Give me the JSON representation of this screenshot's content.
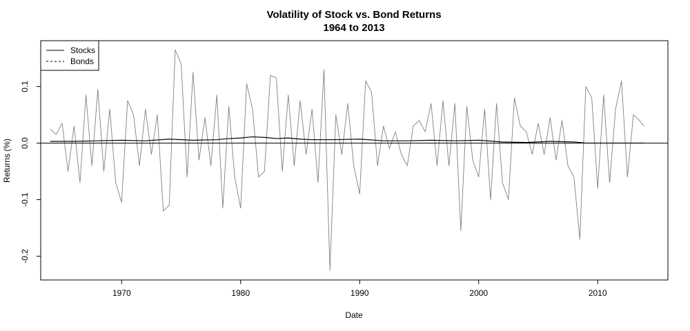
{
  "chart_data": {
    "type": "line",
    "title": "Volatility of Stock vs. Bond Returns",
    "subtitle": "1964 to 2013",
    "xlabel": "Date",
    "ylabel": "Returns (%)",
    "xlim": [
      1963.2,
      2015.9
    ],
    "ylim": [
      -0.242,
      0.181
    ],
    "x_ticks": [
      1970,
      1980,
      1990,
      2000,
      2010
    ],
    "y_ticks": [
      -0.2,
      -0.1,
      0.0,
      0.1
    ],
    "y_tick_labels": [
      "-0.2",
      "-0.1",
      "0.0",
      "0.1"
    ],
    "reference_line_y": 0,
    "grid": false,
    "legend_position": "top-left",
    "series": [
      {
        "name": "Stocks",
        "color": "#808080",
        "line_style": "solid",
        "x": [
          1964.0,
          1964.5,
          1965.0,
          1965.5,
          1966.0,
          1966.5,
          1967.0,
          1967.5,
          1968.0,
          1968.5,
          1969.0,
          1969.5,
          1970.0,
          1970.5,
          1971.0,
          1971.5,
          1972.0,
          1972.5,
          1973.0,
          1973.5,
          1974.0,
          1974.5,
          1975.0,
          1975.5,
          1976.0,
          1976.5,
          1977.0,
          1977.5,
          1978.0,
          1978.5,
          1979.0,
          1979.5,
          1980.0,
          1980.5,
          1981.0,
          1981.5,
          1982.0,
          1982.5,
          1983.0,
          1983.5,
          1984.0,
          1984.5,
          1985.0,
          1985.5,
          1986.0,
          1986.5,
          1987.0,
          1987.5,
          1988.0,
          1988.5,
          1989.0,
          1989.5,
          1990.0,
          1990.5,
          1991.0,
          1991.5,
          1992.0,
          1992.5,
          1993.0,
          1993.5,
          1994.0,
          1994.5,
          1995.0,
          1995.5,
          1996.0,
          1996.5,
          1997.0,
          1997.5,
          1998.0,
          1998.5,
          1999.0,
          1999.5,
          2000.0,
          2000.5,
          2001.0,
          2001.5,
          2002.0,
          2002.5,
          2003.0,
          2003.5,
          2004.0,
          2004.5,
          2005.0,
          2005.5,
          2006.0,
          2006.5,
          2007.0,
          2007.5,
          2008.0,
          2008.5,
          2009.0,
          2009.5,
          2010.0,
          2010.5,
          2011.0,
          2011.5,
          2012.0,
          2012.5,
          2013.0,
          2013.5,
          2013.9
        ],
        "values": [
          0.025,
          0.015,
          0.035,
          -0.05,
          0.03,
          -0.07,
          0.085,
          -0.04,
          0.095,
          -0.05,
          0.06,
          -0.07,
          -0.105,
          0.075,
          0.05,
          -0.04,
          0.06,
          -0.02,
          0.05,
          -0.12,
          -0.11,
          0.165,
          0.14,
          -0.06,
          0.125,
          -0.03,
          0.045,
          -0.04,
          0.085,
          -0.115,
          0.065,
          -0.06,
          -0.115,
          0.105,
          0.06,
          -0.06,
          -0.05,
          0.12,
          0.115,
          -0.05,
          0.085,
          -0.04,
          0.075,
          -0.02,
          0.06,
          -0.07,
          0.13,
          -0.225,
          0.05,
          -0.02,
          0.07,
          -0.04,
          -0.09,
          0.11,
          0.09,
          -0.04,
          0.03,
          -0.01,
          0.02,
          -0.02,
          -0.04,
          0.03,
          0.04,
          0.02,
          0.07,
          -0.04,
          0.075,
          -0.04,
          0.07,
          -0.155,
          0.065,
          -0.03,
          -0.06,
          0.06,
          -0.1,
          0.07,
          -0.07,
          -0.1,
          0.08,
          0.03,
          0.02,
          -0.02,
          0.035,
          -0.02,
          0.045,
          -0.03,
          0.04,
          -0.04,
          -0.06,
          -0.17,
          0.1,
          0.08,
          -0.08,
          0.085,
          -0.07,
          0.06,
          0.11,
          -0.06,
          0.05,
          0.04,
          0.03
        ]
      },
      {
        "name": "Bonds",
        "color": "#000000",
        "line_style": "dashed",
        "x": [
          1964.0,
          1966.0,
          1968.0,
          1970.0,
          1972.0,
          1974.0,
          1976.0,
          1978.0,
          1979.0,
          1980.0,
          1981.0,
          1982.0,
          1983.0,
          1984.0,
          1985.0,
          1986.0,
          1988.0,
          1990.0,
          1992.0,
          1994.0,
          1996.0,
          1998.0,
          2000.0,
          2002.0,
          2004.0,
          2006.0,
          2008.0,
          2009.0,
          2011.0,
          2013.9
        ],
        "values": [
          0.003,
          0.003,
          0.004,
          0.005,
          0.004,
          0.007,
          0.005,
          0.006,
          0.008,
          0.009,
          0.011,
          0.01,
          0.008,
          0.009,
          0.007,
          0.006,
          0.006,
          0.007,
          0.004,
          0.004,
          0.005,
          0.004,
          0.005,
          0.002,
          0.001,
          0.003,
          0.002,
          0.0,
          0.0,
          0.0
        ]
      }
    ]
  }
}
